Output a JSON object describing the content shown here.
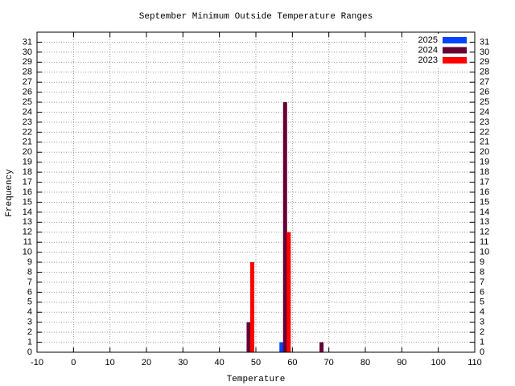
{
  "chart_data": {
    "type": "bar",
    "title": "September Minimum Outside Temperature Ranges",
    "xlabel": "Temperature",
    "ylabel": "Frequency",
    "xlim": [
      -10,
      110
    ],
    "xticks": [
      -10,
      0,
      10,
      20,
      30,
      40,
      50,
      60,
      70,
      80,
      90,
      100,
      110
    ],
    "ylim": [
      0,
      32
    ],
    "yticks": [
      0,
      1,
      2,
      3,
      4,
      5,
      6,
      7,
      8,
      9,
      10,
      11,
      12,
      13,
      14,
      15,
      16,
      17,
      18,
      19,
      20,
      21,
      22,
      23,
      24,
      25,
      26,
      27,
      28,
      29,
      30,
      31
    ],
    "grid": true,
    "legend": "top-right",
    "series": [
      {
        "name": "2025",
        "color": "#0044ff",
        "x": [
          57
        ],
        "values": [
          1
        ]
      },
      {
        "name": "2024",
        "color": "#660033",
        "x": [
          48,
          58,
          68
        ],
        "values": [
          3,
          25,
          1
        ]
      },
      {
        "name": "2023",
        "color": "#ff0000",
        "x": [
          49,
          59
        ],
        "values": [
          9,
          12
        ]
      }
    ]
  }
}
